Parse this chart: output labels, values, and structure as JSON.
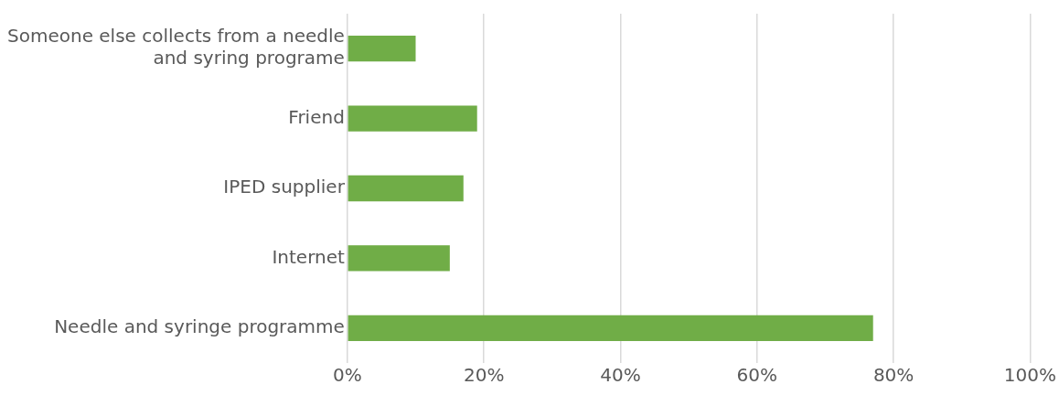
{
  "chart_data": {
    "type": "bar",
    "orientation": "horizontal",
    "categories": [
      "Someone else collects from a needle and syring programe",
      "Friend",
      "IPED supplier",
      "Internet",
      "Needle and syringe programme"
    ],
    "values": [
      10,
      19,
      17,
      15,
      77
    ],
    "color": "#70ad47",
    "xlim": [
      0,
      100
    ],
    "xticks": [
      {
        "value": 0,
        "label": "0%"
      },
      {
        "value": 20,
        "label": "20%"
      },
      {
        "value": 40,
        "label": "40%"
      },
      {
        "value": 60,
        "label": "60%"
      },
      {
        "value": 80,
        "label": "80%"
      },
      {
        "value": 100,
        "label": "100%"
      }
    ],
    "grid": "x",
    "legend": false
  }
}
